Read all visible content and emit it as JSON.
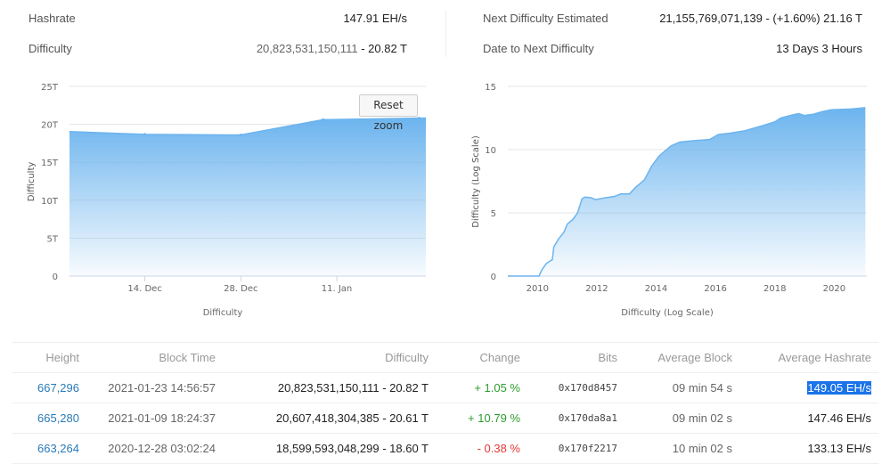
{
  "stats": {
    "hashrate_label": "Hashrate",
    "hashrate_value": "147.91 EH/s",
    "difficulty_label": "Difficulty",
    "difficulty_full": "20,823,531,150,111",
    "difficulty_short": "- 20.82 T",
    "next_label": "Next Difficulty Estimated",
    "next_value": "21,155,769,071,139 - (+1.60%) 21.16 T",
    "date_label": "Date to Next Difficulty",
    "date_value": "13 Days 3 Hours"
  },
  "chart_data": [
    {
      "type": "area",
      "xlabel": "Difficulty",
      "ylabel": "Difficulty",
      "reset_zoom_label": "Reset zoom",
      "xlim": [
        "2020-12-03",
        "2021-01-24"
      ],
      "ylim": [
        0,
        25
      ],
      "y_ticks": [
        "0",
        "5T",
        "10T",
        "15T",
        "20T",
        "25T"
      ],
      "x_ticks": [
        {
          "date": "2020-12-14",
          "label": "14. Dec"
        },
        {
          "date": "2020-12-28",
          "label": "28. Dec"
        },
        {
          "date": "2021-01-11",
          "label": "11. Jan"
        }
      ],
      "grid": true,
      "points": [
        [
          "2020-12-03",
          19.05
        ],
        [
          "2020-12-14",
          18.67
        ],
        [
          "2020-12-28",
          18.6
        ],
        [
          "2021-01-09",
          20.61
        ],
        [
          "2021-01-23",
          20.82
        ],
        [
          "2021-01-24",
          20.82
        ]
      ],
      "color": "#6cb4ee"
    },
    {
      "type": "area",
      "xlabel": "Difficulty (Log Scale)",
      "ylabel": "Difficulty (Log Scale)",
      "xlim": [
        2009.0,
        2021.1
      ],
      "ylim": [
        0,
        15
      ],
      "y_ticks": [
        "0",
        "5",
        "10",
        "15"
      ],
      "x_ticks": [
        "2010",
        "2012",
        "2014",
        "2016",
        "2018",
        "2020"
      ],
      "grid": true,
      "points": [
        [
          2009.0,
          0
        ],
        [
          2010.05,
          0
        ],
        [
          2010.15,
          0.5
        ],
        [
          2010.3,
          1.0
        ],
        [
          2010.5,
          1.3
        ],
        [
          2010.55,
          2.3
        ],
        [
          2010.7,
          2.9
        ],
        [
          2010.9,
          3.5
        ],
        [
          2011.0,
          4.1
        ],
        [
          2011.2,
          4.5
        ],
        [
          2011.35,
          5.0
        ],
        [
          2011.5,
          6.1
        ],
        [
          2011.6,
          6.25
        ],
        [
          2011.8,
          6.2
        ],
        [
          2011.95,
          6.05
        ],
        [
          2012.3,
          6.2
        ],
        [
          2012.6,
          6.3
        ],
        [
          2012.8,
          6.5
        ],
        [
          2013.1,
          6.5
        ],
        [
          2013.3,
          7.0
        ],
        [
          2013.6,
          7.6
        ],
        [
          2013.85,
          8.7
        ],
        [
          2014.1,
          9.5
        ],
        [
          2014.5,
          10.3
        ],
        [
          2014.8,
          10.6
        ],
        [
          2015.2,
          10.7
        ],
        [
          2015.8,
          10.8
        ],
        [
          2016.1,
          11.2
        ],
        [
          2016.5,
          11.3
        ],
        [
          2017.0,
          11.5
        ],
        [
          2017.6,
          11.9
        ],
        [
          2018.0,
          12.2
        ],
        [
          2018.2,
          12.5
        ],
        [
          2018.6,
          12.75
        ],
        [
          2018.8,
          12.85
        ],
        [
          2019.0,
          12.7
        ],
        [
          2019.3,
          12.8
        ],
        [
          2019.6,
          13.0
        ],
        [
          2019.9,
          13.15
        ],
        [
          2020.5,
          13.2
        ],
        [
          2021.05,
          13.32
        ]
      ],
      "color": "#6cb4ee"
    }
  ],
  "table": {
    "headers": [
      "Height",
      "Block Time",
      "Difficulty",
      "Change",
      "Bits",
      "Average Block",
      "Average Hashrate"
    ],
    "rows": [
      {
        "height": "667,296",
        "time": "2021-01-23 14:56:57",
        "difficulty": "20,823,531,150,111 - 20.82 T",
        "change": "+ 1.05 %",
        "change_dir": "up",
        "bits": "0x170d8457",
        "avg_block": "09 min 54 s",
        "avg_hashrate": "149.05 EH/s"
      },
      {
        "height": "665,280",
        "time": "2021-01-09 18:24:37",
        "difficulty": "20,607,418,304,385 - 20.61 T",
        "change": "+ 10.79 %",
        "change_dir": "up",
        "bits": "0x170da8a1",
        "avg_block": "09 min 02 s",
        "avg_hashrate": "147.46 EH/s"
      },
      {
        "height": "663,264",
        "time": "2020-12-28 03:02:24",
        "difficulty": "18,599,593,048,299 - 18.60 T",
        "change": "- 0.38 %",
        "change_dir": "down",
        "bits": "0x170f2217",
        "avg_block": "10 min 02 s",
        "avg_hashrate": "133.13 EH/s"
      }
    ]
  }
}
